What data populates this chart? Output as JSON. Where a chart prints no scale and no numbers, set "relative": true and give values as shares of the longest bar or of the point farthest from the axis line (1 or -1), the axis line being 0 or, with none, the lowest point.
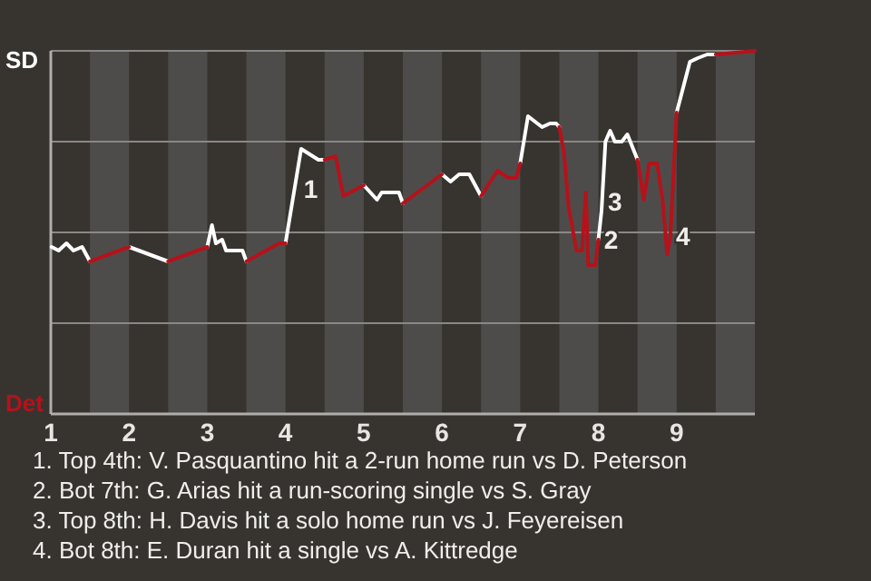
{
  "chart_data": {
    "type": "line",
    "series": [
      {
        "color": "#ffffff",
        "x": [
          1.01,
          1.1,
          1.2,
          1.29,
          1.4,
          1.5,
          1.75,
          2.0,
          2.5,
          2.75,
          3.0,
          3.06,
          3.11,
          3.19,
          3.24,
          3.45,
          3.5,
          3.75,
          4.0,
          4.2,
          4.42,
          4.5,
          4.75,
          5.0,
          5.17,
          5.23,
          5.45,
          5.5,
          5.75,
          6.0,
          6.11,
          6.22,
          6.35,
          6.5,
          6.75,
          7.0,
          7.1,
          7.28,
          7.38,
          7.46,
          7.5,
          7.75,
          8.0,
          8.04,
          8.09,
          8.15,
          8.21,
          8.3,
          8.37,
          8.5,
          8.75,
          9.0,
          9.17,
          9.27,
          9.39,
          9.5
        ],
        "values": [
          0.46,
          0.45,
          0.47,
          0.45,
          0.46,
          0.42,
          null,
          0.46,
          0.42,
          null,
          0.46,
          0.52,
          0.47,
          0.48,
          0.45,
          0.45,
          0.42,
          null,
          0.47,
          0.73,
          0.7,
          0.7,
          null,
          0.63,
          0.59,
          0.61,
          0.61,
          0.58,
          null,
          0.66,
          0.64,
          0.66,
          0.66,
          0.6,
          null,
          0.69,
          0.82,
          0.79,
          0.8,
          0.8,
          0.79,
          null,
          0.48,
          0.56,
          0.75,
          0.78,
          0.75,
          0.75,
          0.77,
          0.7,
          null,
          0.83,
          0.97,
          0.98,
          0.99,
          0.99
        ]
      },
      {
        "color": "#b5121b",
        "x": [
          1.5,
          2.0,
          2.25,
          2.5,
          3.0,
          3.25,
          3.5,
          3.92,
          4.0,
          4.25,
          4.5,
          4.64,
          4.74,
          5.0,
          5.25,
          5.5,
          6.0,
          6.25,
          6.5,
          6.71,
          6.85,
          6.95,
          7.0,
          7.25,
          7.5,
          7.56,
          7.62,
          7.72,
          7.79,
          7.84,
          7.87,
          7.96,
          8.0,
          8.25,
          8.5,
          8.58,
          8.65,
          8.75,
          8.82,
          8.88,
          8.92,
          9.0,
          9.25,
          9.5,
          10.0
        ],
        "values": [
          0.42,
          0.46,
          null,
          0.42,
          0.46,
          null,
          0.42,
          0.47,
          0.47,
          null,
          0.7,
          0.71,
          0.6,
          0.63,
          null,
          0.58,
          0.66,
          null,
          0.6,
          0.67,
          0.65,
          0.65,
          0.69,
          null,
          0.79,
          0.72,
          0.57,
          0.45,
          0.45,
          0.61,
          0.41,
          0.41,
          0.48,
          null,
          0.7,
          0.59,
          0.69,
          0.69,
          0.59,
          0.44,
          0.49,
          0.83,
          null,
          0.99,
          1.0
        ]
      }
    ],
    "relative": true,
    "xlim": [
      1,
      10
    ],
    "xticks": [
      1,
      2,
      3,
      4,
      5,
      6,
      7,
      8,
      9
    ],
    "grid": "y",
    "bands": [
      {
        "axis": "x",
        "from": 1.5,
        "to": 2,
        "color": "#4e4c4a"
      },
      {
        "axis": "x",
        "from": 2.5,
        "to": 3,
        "color": "#4e4c4a"
      },
      {
        "axis": "x",
        "from": 3.5,
        "to": 4,
        "color": "#4e4c4a"
      },
      {
        "axis": "x",
        "from": 4.5,
        "to": 5,
        "color": "#4e4c4a"
      },
      {
        "axis": "x",
        "from": 5.5,
        "to": 6,
        "color": "#4e4c4a"
      },
      {
        "axis": "x",
        "from": 6.5,
        "to": 7,
        "color": "#4e4c4a"
      },
      {
        "axis": "x",
        "from": 7.5,
        "to": 8,
        "color": "#4e4c4a"
      },
      {
        "axis": "x",
        "from": 8.5,
        "to": 9,
        "color": "#4e4c4a"
      },
      {
        "axis": "x",
        "from": 9.5,
        "to": 10,
        "color": "#4e4c4a"
      }
    ],
    "annotations": [
      "SD",
      "Det",
      {
        "text": "1",
        "x": 4.16,
        "y": 0.62
      },
      {
        "text": "2",
        "x": 8.0,
        "y": 0.48
      },
      {
        "text": "3",
        "x": 8.05,
        "y": 0.585
      },
      {
        "text": "4",
        "x": 8.92,
        "y": 0.49
      },
      "1. Top 4th: V. Pasquantino hit a 2-run home run vs D. Peterson",
      "2. Bot 7th: G. Arias hit a run-scoring single vs S. Gray",
      "3. Top 8th: H. Davis hit a solo home run vs J. Feyereisen",
      "4. Bot 8th: E. Duran hit a single vs A. Kittredge"
    ]
  }
}
